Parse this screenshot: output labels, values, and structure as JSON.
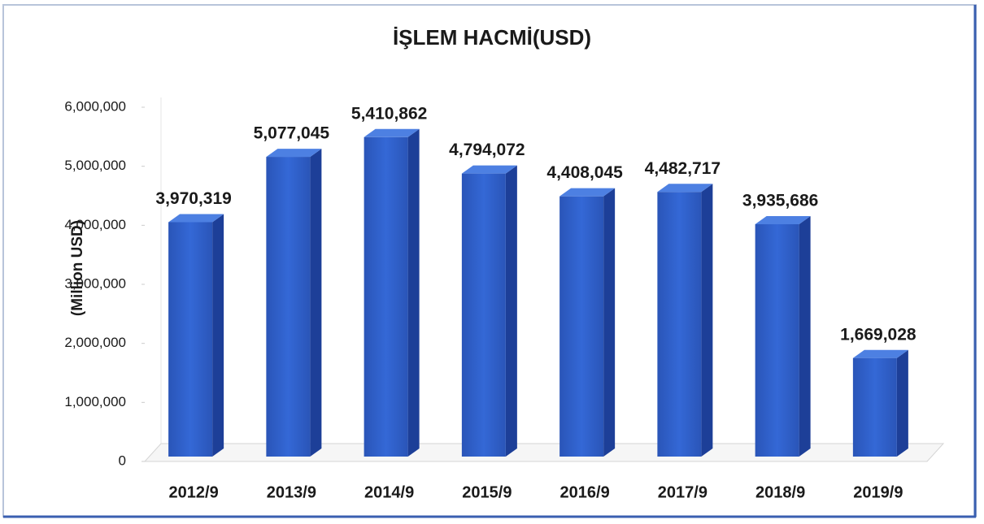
{
  "chart_data": {
    "type": "bar3d",
    "title": "İŞLEM HACMİ(USD)",
    "y_label": "(Million USD)",
    "categories": [
      "2012/9",
      "2013/9",
      "2014/9",
      "2015/9",
      "2016/9",
      "2017/9",
      "2018/9",
      "2019/9"
    ],
    "values": [
      3970319,
      5077045,
      5410862,
      4794072,
      4408045,
      4482717,
      3935686,
      1669028
    ],
    "value_labels": [
      "3,970,319",
      "5,077,045",
      "5,410,862",
      "4,794,072",
      "4,408,045",
      "4,482,717",
      "3,935,686",
      "1,669,028"
    ],
    "color": "#2f5fc8",
    "ylim": [
      0,
      6000000
    ],
    "yticks": [
      0,
      {
        "value": 1000000,
        "label": "1,000,000"
      },
      {
        "value": 2000000,
        "label": "2,000,000"
      },
      {
        "value": 3000000,
        "label": "3,000,000"
      },
      {
        "value": 4000000,
        "label": "4,000,000"
      },
      {
        "value": 5000000,
        "label": "5,000,000"
      },
      {
        "value": 6000000,
        "label": "6,000,000"
      }
    ],
    "grid": false
  }
}
